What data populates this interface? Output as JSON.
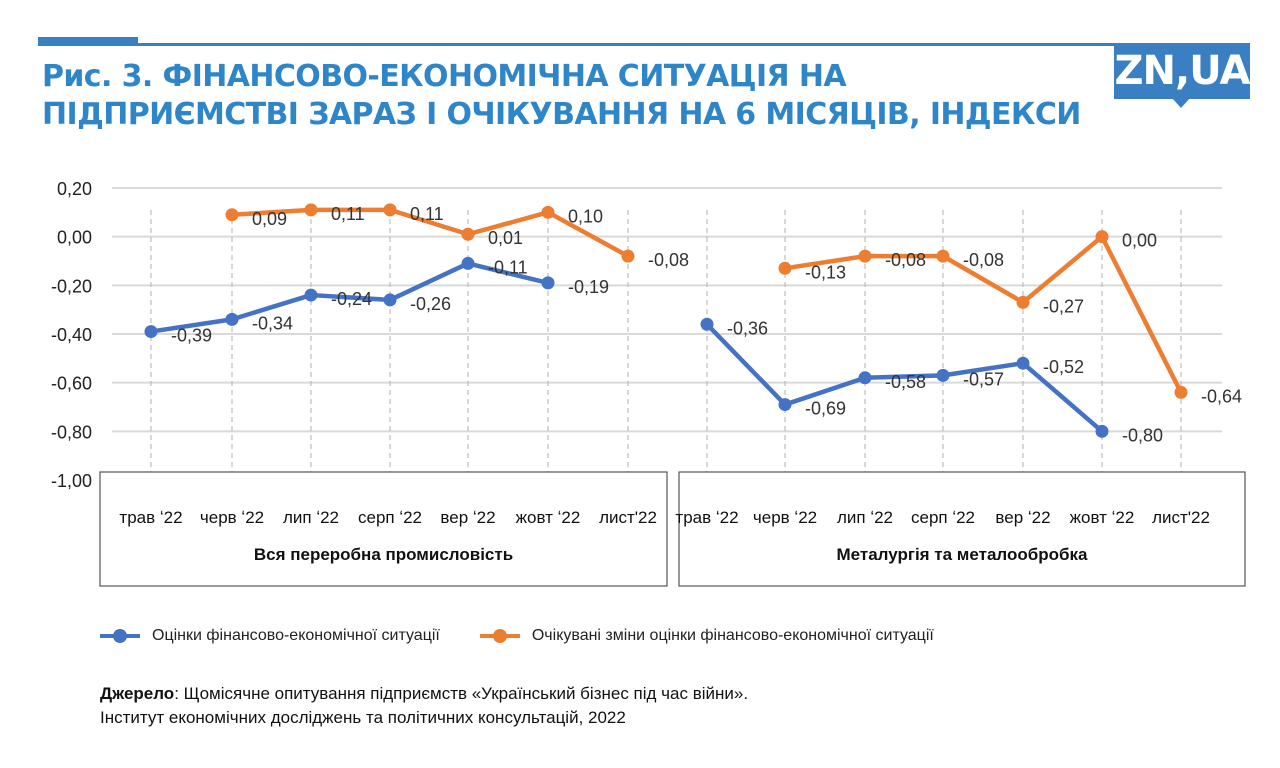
{
  "header": {
    "title_line1": "Рис. 3. ФІНАНСОВО-ЕКОНОМІЧНА СИТУАЦІЯ НА",
    "title_line2": "ПІДПРИЄМСТВІ ЗАРАЗ І ОЧІКУВАННЯ НА 6 МІСЯЦІВ, ІНДЕКСИ",
    "logo_text": "ZN,UA",
    "accent_color": "#3a7fc1",
    "title_color": "#2e86c8"
  },
  "chart_data": {
    "type": "line",
    "title": "Рис. 3. Фінансово-економічна ситуація на підприємстві зараз і очікування на 6 місяців, індекси",
    "ylim": [
      -1.0,
      0.2
    ],
    "yticks": [
      "0,20",
      "0,00",
      "-0,20",
      "-0,40",
      "-0,60",
      "-0,80",
      "-1,00"
    ],
    "ytick_values": [
      0.2,
      0.0,
      -0.2,
      -0.4,
      -0.6,
      -0.8,
      -1.0
    ],
    "grid": true,
    "legend_position": "bottom",
    "series_colors": {
      "current": "#4472c4",
      "expected": "#ed7d31"
    },
    "groups": [
      {
        "name": "Вся переробна промисловість",
        "categories": [
          "трав ʻ22",
          "черв ʻ22",
          "лип ʻ22",
          "серп ʻ22",
          "вер ʻ22",
          "жовт ʻ22",
          "лист'22"
        ],
        "series": [
          {
            "name": "Оцінки фінансово-економічної ситуації",
            "key": "current",
            "values": [
              -0.39,
              -0.34,
              -0.24,
              -0.26,
              -0.11,
              -0.19,
              null
            ],
            "labels": [
              "-0,39",
              "-0,34",
              "-0,24",
              "-0,26",
              "-0,11",
              "-0,19",
              null
            ]
          },
          {
            "name": "Очікувані зміни оцінки фінансово-економічної ситуації",
            "key": "expected",
            "values": [
              null,
              0.09,
              0.11,
              0.11,
              0.01,
              0.1,
              -0.08
            ],
            "labels": [
              null,
              "0,09",
              "0,11",
              "0,11",
              "0,01",
              "0,10",
              "-0,08"
            ]
          }
        ]
      },
      {
        "name": "Металургія та металообробка",
        "categories": [
          "трав ʻ22",
          "черв ʻ22",
          "лип ʻ22",
          "серп ʻ22",
          "вер ʻ22",
          "жовт ʻ22",
          "лист'22"
        ],
        "series": [
          {
            "name": "Оцінки фінансово-економічної ситуації",
            "key": "current",
            "values": [
              -0.36,
              -0.69,
              -0.58,
              -0.57,
              -0.52,
              -0.8,
              null
            ],
            "labels": [
              "-0,36",
              "-0,69",
              "-0,58",
              "-0,57",
              "-0,52",
              "-0,80",
              null
            ]
          },
          {
            "name": "Очікувані зміни оцінки фінансово-економічної ситуації",
            "key": "expected",
            "values": [
              null,
              -0.13,
              -0.08,
              -0.08,
              -0.27,
              0.0,
              -0.64
            ],
            "labels": [
              null,
              "-0,13",
              "-0,08",
              "-0,08",
              "-0,27",
              "0,00",
              "-0,64"
            ]
          }
        ]
      }
    ]
  },
  "legend": {
    "items": [
      {
        "label": "Оцінки фінансово-економічної ситуації",
        "color": "#4472c4"
      },
      {
        "label": "Очікувані зміни оцінки фінансово-економічної ситуації",
        "color": "#ed7d31"
      }
    ]
  },
  "source": {
    "label": "Джерело",
    "text": ": Щомісячне опитування підприємств «Український бізнес під час війни».",
    "line2": "Інститут економічних досліджень та політичних консультацій, 2022"
  }
}
